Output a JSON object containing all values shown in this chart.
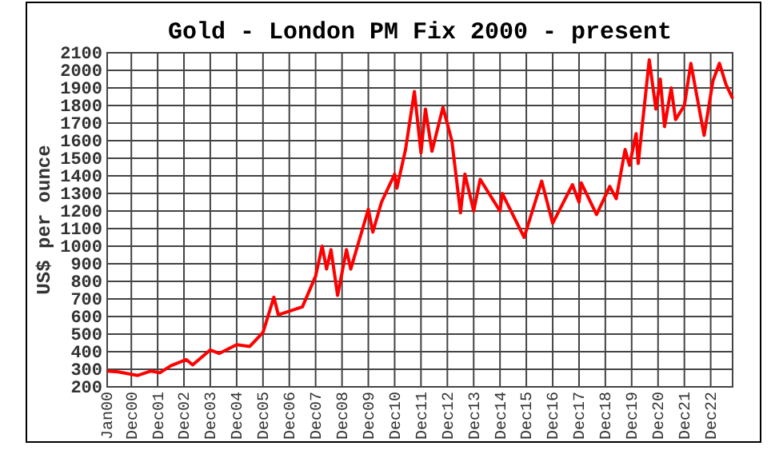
{
  "chart_data": {
    "type": "line",
    "title": "Gold - London PM Fix 2000 - present",
    "ylabel": "US$ per ounce",
    "x": [
      "2000-01",
      "2000-06",
      "2001-03",
      "2001-09",
      "2002-01",
      "2002-06",
      "2003-01",
      "2003-04",
      "2003-12",
      "2004-04",
      "2004-12",
      "2005-06",
      "2005-12",
      "2006-05",
      "2006-07",
      "2006-12",
      "2007-06",
      "2007-12",
      "2008-03",
      "2008-05",
      "2008-07",
      "2008-10",
      "2009-02",
      "2009-04",
      "2009-12",
      "2010-02",
      "2010-06",
      "2010-12",
      "2011-01",
      "2011-05",
      "2011-09",
      "2011-12",
      "2012-02",
      "2012-05",
      "2012-10",
      "2013-02",
      "2013-06",
      "2013-08",
      "2013-12",
      "2014-03",
      "2014-12",
      "2015-01",
      "2015-11",
      "2016-07",
      "2016-12",
      "2017-09",
      "2017-12",
      "2018-01",
      "2018-08",
      "2019-02",
      "2019-05",
      "2019-09",
      "2019-11",
      "2020-02",
      "2020-03",
      "2020-08",
      "2020-11",
      "2021-01",
      "2021-03",
      "2021-06",
      "2021-08",
      "2021-12",
      "2022-03",
      "2022-09",
      "2023-01",
      "2023-04",
      "2023-07",
      "2023-10"
    ],
    "series": [
      {
        "color": "#ff0000",
        "values": [
          290,
          285,
          265,
          290,
          280,
          320,
          355,
          325,
          410,
          390,
          440,
          430,
          510,
          710,
          610,
          630,
          655,
          830,
          1000,
          870,
          980,
          720,
          980,
          870,
          1210,
          1080,
          1250,
          1410,
          1330,
          1550,
          1880,
          1530,
          1780,
          1540,
          1790,
          1600,
          1190,
          1410,
          1200,
          1380,
          1200,
          1300,
          1050,
          1370,
          1130,
          1350,
          1250,
          1360,
          1180,
          1340,
          1270,
          1550,
          1460,
          1640,
          1470,
          2060,
          1780,
          1950,
          1680,
          1900,
          1720,
          1800,
          2040,
          1630,
          1940,
          2040,
          1920,
          1840
        ]
      }
    ],
    "xlim": [
      "2000-01",
      "2023-10"
    ],
    "xticks": [
      {
        "value": "2000-01",
        "label": "Jan00"
      },
      {
        "value": "2000-12",
        "label": "Dec00"
      },
      {
        "value": "2001-12",
        "label": "Dec01"
      },
      {
        "value": "2002-12",
        "label": "Dec02"
      },
      {
        "value": "2003-12",
        "label": "Dec03"
      },
      {
        "value": "2004-12",
        "label": "Dec04"
      },
      {
        "value": "2005-12",
        "label": "Dec05"
      },
      {
        "value": "2006-12",
        "label": "Dec06"
      },
      {
        "value": "2007-12",
        "label": "Dec07"
      },
      {
        "value": "2008-12",
        "label": "Dec08"
      },
      {
        "value": "2009-12",
        "label": "Dec09"
      },
      {
        "value": "2010-12",
        "label": "Dec10"
      },
      {
        "value": "2011-12",
        "label": "Dec11"
      },
      {
        "value": "2012-12",
        "label": "Dec12"
      },
      {
        "value": "2013-12",
        "label": "Dec13"
      },
      {
        "value": "2014-12",
        "label": "Dec14"
      },
      {
        "value": "2015-12",
        "label": "Dec15"
      },
      {
        "value": "2016-12",
        "label": "Dec16"
      },
      {
        "value": "2017-12",
        "label": "Dec17"
      },
      {
        "value": "2018-12",
        "label": "Dec18"
      },
      {
        "value": "2019-12",
        "label": "Dec19"
      },
      {
        "value": "2020-12",
        "label": "Dec20"
      },
      {
        "value": "2021-12",
        "label": "Dec21"
      },
      {
        "value": "2022-12",
        "label": "Dec22"
      }
    ],
    "ylim": [
      200,
      2100
    ],
    "yticks": [
      200,
      300,
      400,
      500,
      600,
      700,
      800,
      900,
      1000,
      1100,
      1200,
      1300,
      1400,
      1500,
      1600,
      1700,
      1800,
      1900,
      2000,
      2100
    ],
    "grid": true,
    "marker": "none",
    "line_style": "solid"
  }
}
